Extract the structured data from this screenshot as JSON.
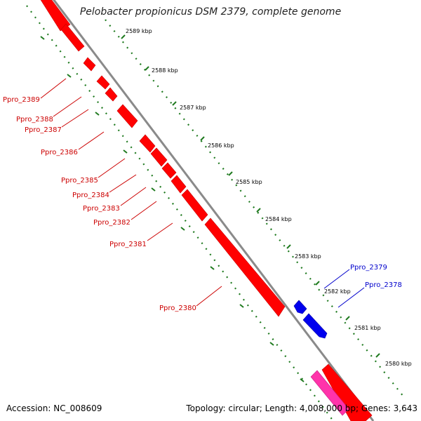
{
  "title": "Pelobacter propionicus DSM 2379, complete genome",
  "footer": {
    "accession": "Accession: NC_008609",
    "summary": "Topology: circular; Length: 4,008,000 bp; Genes: 3,643"
  },
  "colors": {
    "backbone": "#8a8a8a",
    "tick_green": "#1f7a1f",
    "forward_gene": "#ff0000",
    "reverse_gene": "#0000ee",
    "rna_gene": "#ff33aa",
    "label_red": "#cc0000",
    "label_blue": "#0000cc"
  },
  "scale": {
    "unit": "kbp",
    "ticks": [
      {
        "value": 2589,
        "label": "2589 kbp"
      },
      {
        "value": 2588,
        "label": "2588 kbp"
      },
      {
        "value": 2587,
        "label": "2587 kbp"
      },
      {
        "value": 2586,
        "label": "2586 kbp"
      },
      {
        "value": 2585,
        "label": "2585 kbp"
      },
      {
        "value": 2584,
        "label": "2584 kbp"
      },
      {
        "value": 2583,
        "label": "2583 kbp"
      },
      {
        "value": 2582,
        "label": "2582 kbp"
      },
      {
        "value": 2581,
        "label": "2581 kbp"
      },
      {
        "value": 2580,
        "label": "2580 kbp"
      }
    ]
  },
  "labels_forward": [
    {
      "text": "Ppro_2389"
    },
    {
      "text": "Ppro_2388"
    },
    {
      "text": "Ppro_2387"
    },
    {
      "text": "Ppro_2386"
    },
    {
      "text": "Ppro_2385"
    },
    {
      "text": "Ppro_2384"
    },
    {
      "text": "Ppro_2383"
    },
    {
      "text": "Ppro_2382"
    },
    {
      "text": "Ppro_2381"
    },
    {
      "text": "Ppro_2380"
    }
  ],
  "labels_reverse": [
    {
      "text": "Ppro_2379"
    },
    {
      "text": "Ppro_2378"
    }
  ]
}
